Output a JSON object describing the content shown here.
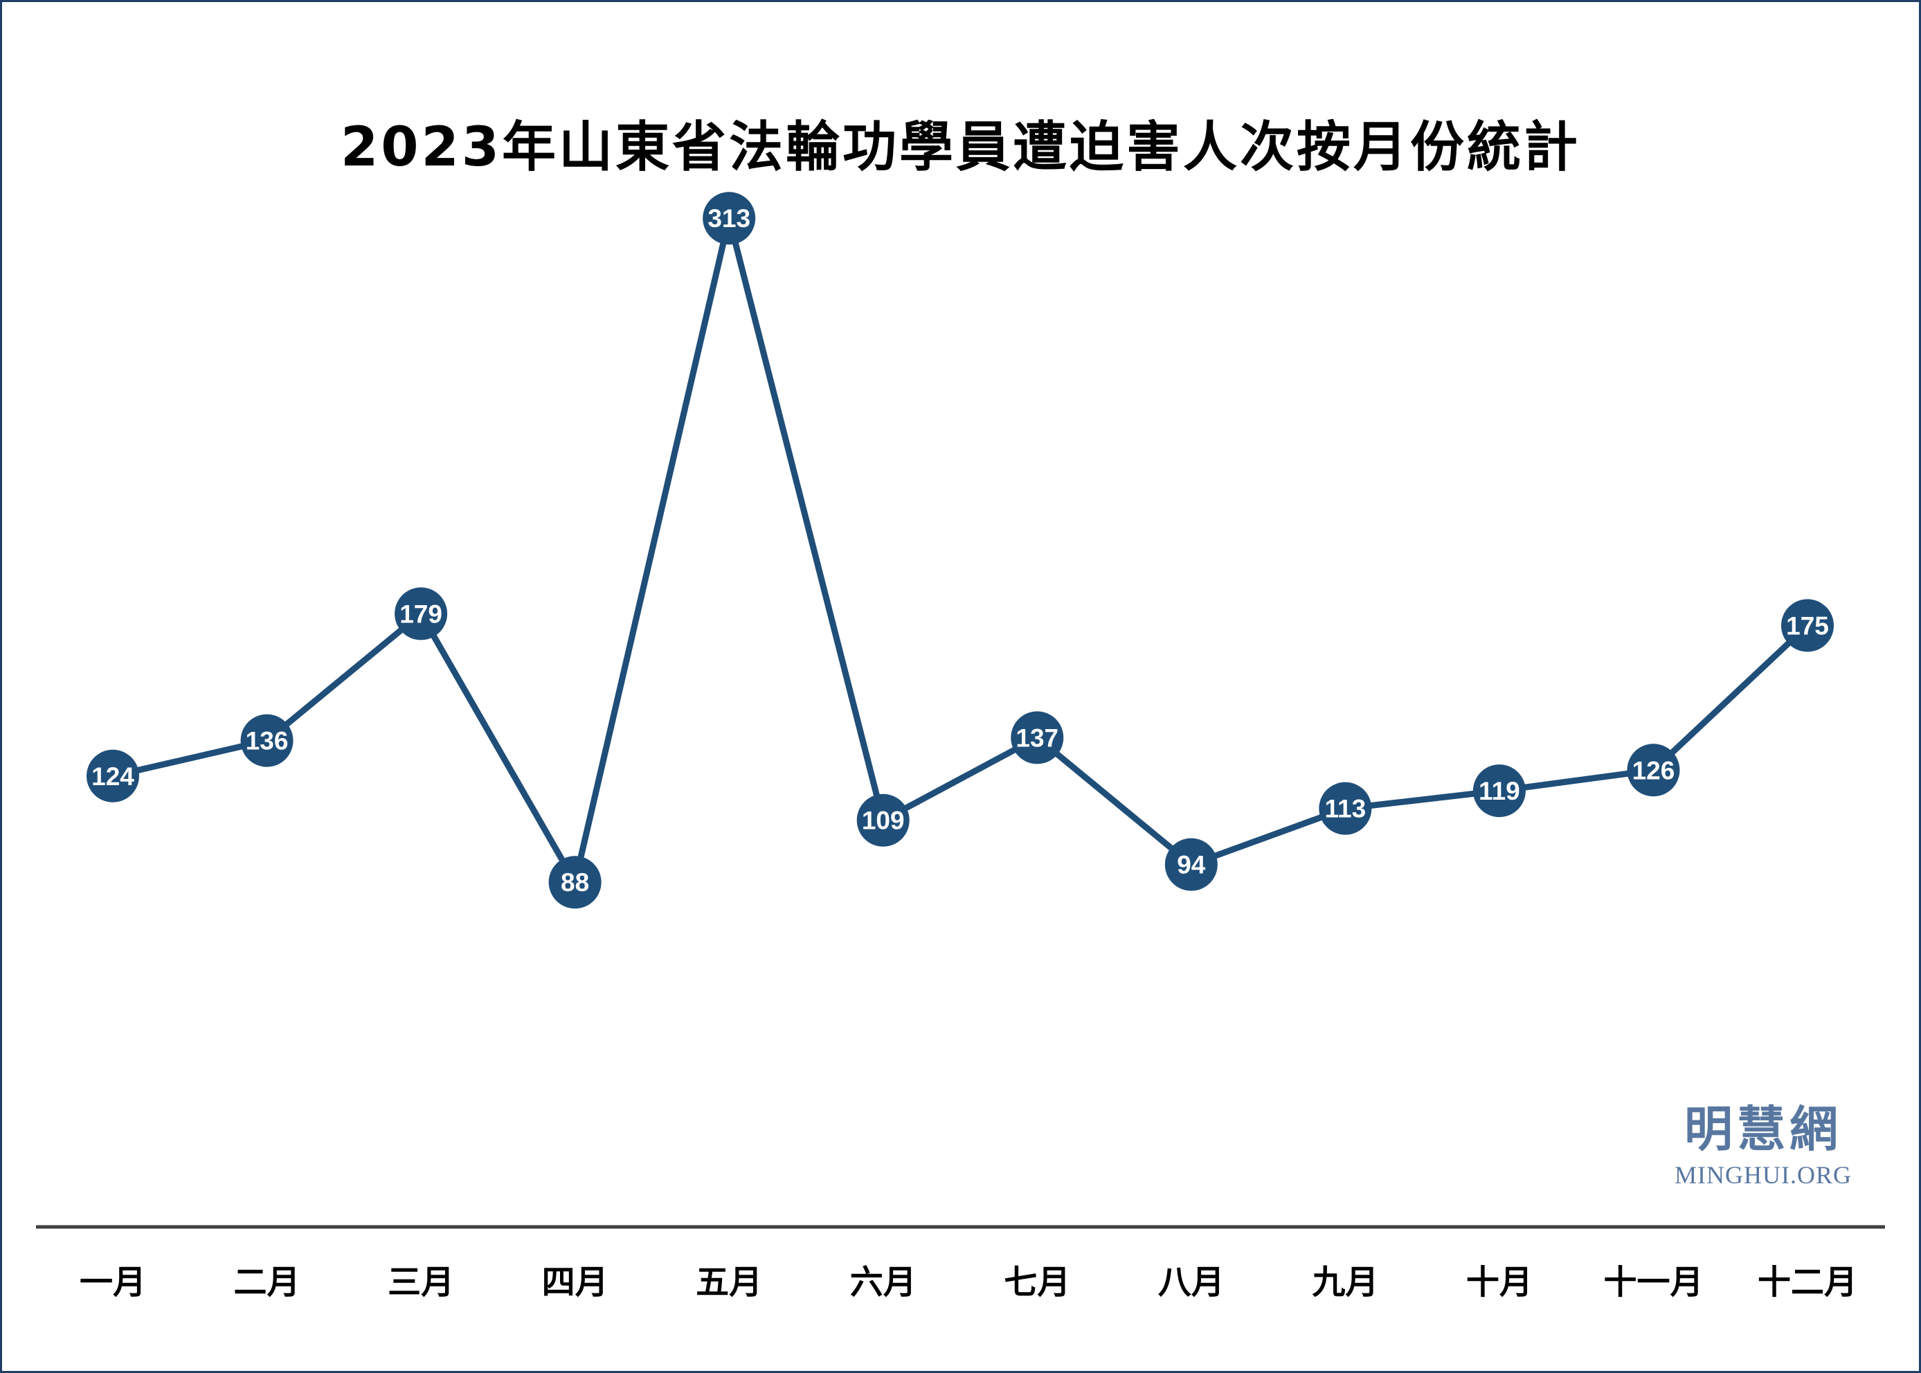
{
  "chart_data": {
    "type": "line",
    "title": "2023年山東省法輪功學員遭迫害人次按月份統計",
    "categories": [
      "一月",
      "二月",
      "三月",
      "四月",
      "五月",
      "六月",
      "七月",
      "八月",
      "九月",
      "十月",
      "十一月",
      "十二月"
    ],
    "series": [
      {
        "values": [
          124,
          136,
          179,
          88,
          313,
          109,
          137,
          94,
          113,
          119,
          126,
          175
        ]
      }
    ],
    "ylim": [
      0,
      400
    ],
    "grid": false,
    "data_labels": true,
    "colors": {
      "line": "#1f4e79",
      "marker": "#1f4e79",
      "label": "#ffffff",
      "axis": "#404040"
    }
  },
  "watermark": {
    "chinese": "明慧網",
    "english": "MINGHUI.ORG"
  }
}
